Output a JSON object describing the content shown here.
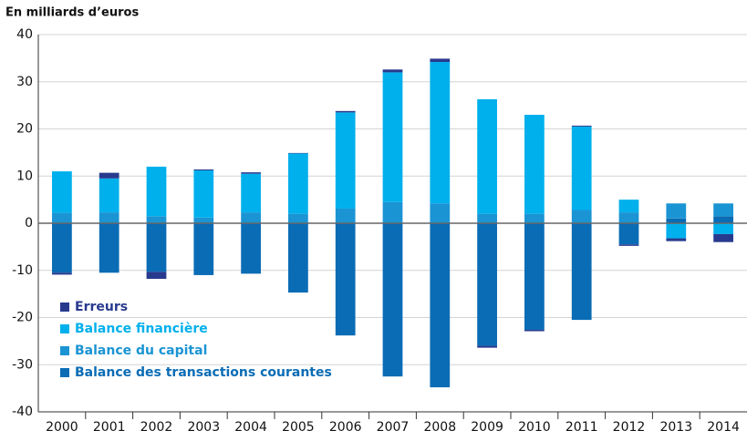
{
  "chart_data": {
    "type": "bar",
    "stacked": true,
    "y_label": "En milliards d’euros",
    "categories": [
      "2000",
      "2001",
      "2002",
      "2003",
      "2004",
      "2005",
      "2006",
      "2007",
      "2008",
      "2009",
      "2010",
      "2011",
      "2012",
      "2013",
      "2014"
    ],
    "series": [
      {
        "name": "Balance des transactions courantes",
        "color": "#0a6cb5",
        "values": [
          -10.5,
          -10.5,
          -10.3,
          -11,
          -10.7,
          -14.7,
          -23.8,
          -32.5,
          -34.8,
          -26,
          -22.6,
          -20.5,
          -4.5,
          1,
          1.5
        ]
      },
      {
        "name": "Balance du capital",
        "color": "#1b94d4",
        "values": [
          2.2,
          2.3,
          1.5,
          1.2,
          2.3,
          2,
          3.1,
          4.5,
          4.2,
          2,
          2,
          2.8,
          2.3,
          3.2,
          2.7
        ]
      },
      {
        "name": "Balance financière",
        "color": "#00b0ec",
        "values": [
          8.8,
          7.2,
          10.5,
          10,
          8.2,
          12.8,
          20.4,
          27.5,
          30,
          24.3,
          21,
          17.7,
          2.7,
          -3.2,
          -2.3
        ]
      },
      {
        "name": "Erreurs",
        "color": "#283a8e",
        "values": [
          -0.4,
          1.2,
          -1.5,
          0.2,
          0.3,
          0.1,
          0.3,
          0.6,
          0.7,
          -0.4,
          -0.3,
          0.2,
          -0.3,
          -0.6,
          -1.7
        ]
      }
    ],
    "ylim": [
      -40,
      40
    ],
    "yticks": [
      -40,
      -30,
      -20,
      -10,
      0,
      10,
      20,
      30,
      40
    ],
    "grid": true
  }
}
